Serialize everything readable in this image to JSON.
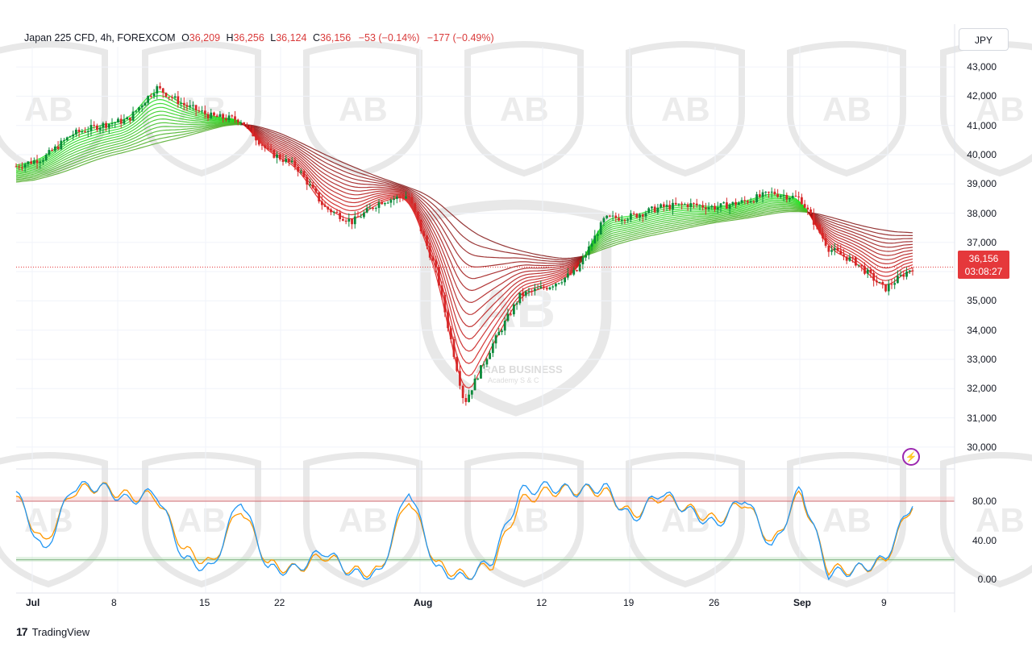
{
  "header": {
    "symbol": "Japan 225 CFD, 4h, FOREXCOM",
    "open_label": "O",
    "open": "36,209",
    "high_label": "H",
    "high": "36,256",
    "low_label": "L",
    "low": "36,124",
    "close_label": "C",
    "close": "36,156",
    "change": "−53 (−0.14%)",
    "change2": "−177 (−0.49%)"
  },
  "currency_button": "JPY",
  "price_tag": {
    "price": "36,156",
    "countdown": "03:08:27"
  },
  "brand": "TradingView",
  "watermark": {
    "title": "ARAB BUSINESS",
    "subtitle": "Academy S & C"
  },
  "colors": {
    "bull": "#26a69a",
    "bear": "#ef5350",
    "ribbon_up": "#00e600",
    "ribbon_down": "#d50000",
    "stoch_k": "#2196f3",
    "stoch_d": "#ff9800"
  },
  "chart_data": [
    {
      "type": "line",
      "title": "Japan 225 CFD, 4h, FOREXCOM",
      "ylim": [
        29500,
        43500
      ],
      "yticks": [
        "30,000",
        "31,000",
        "32,000",
        "33,000",
        "34,000",
        "35,000",
        "36,000",
        "37,000",
        "38,000",
        "39,000",
        "40,000",
        "41,000",
        "42,000",
        "43,000"
      ],
      "xticks": [
        "Jul",
        "8",
        "15",
        "22",
        "Aug",
        "12",
        "19",
        "26",
        "Sep",
        "9"
      ],
      "x": [
        "Jul 1",
        "Jul 3",
        "Jul 5",
        "Jul 8",
        "Jul 10",
        "Jul 11",
        "Jul 12",
        "Jul 15",
        "Jul 17",
        "Jul 19",
        "Jul 22",
        "Jul 24",
        "Jul 26",
        "Jul 29",
        "Jul 31",
        "Aug 2",
        "Aug 5",
        "Aug 6",
        "Aug 8",
        "Aug 12",
        "Aug 14",
        "Aug 16",
        "Aug 19",
        "Aug 21",
        "Aug 23",
        "Aug 26",
        "Aug 28",
        "Aug 30",
        "Sep 2",
        "Sep 4",
        "Sep 6",
        "Sep 9",
        "Sep 10"
      ],
      "series": [
        {
          "name": "close",
          "values": [
            39600,
            39900,
            40700,
            41000,
            41200,
            42300,
            41700,
            41300,
            41200,
            40100,
            39600,
            38200,
            37700,
            38400,
            38600,
            36000,
            31500,
            33500,
            35200,
            35500,
            36000,
            37800,
            37900,
            38200,
            38300,
            38200,
            38400,
            38700,
            38500,
            36800,
            36300,
            35400,
            36156
          ]
        },
        {
          "name": "ribbon_slow",
          "values": [
            39000,
            39200,
            39500,
            39900,
            40100,
            40400,
            40600,
            40900,
            41100,
            40900,
            40500,
            40000,
            39600,
            39200,
            38900,
            38500,
            37500,
            37000,
            36700,
            36500,
            36400,
            36800,
            37100,
            37300,
            37500,
            37700,
            37800,
            38000,
            38100,
            37900,
            37600,
            37400,
            37300
          ]
        }
      ]
    },
    {
      "type": "line",
      "title": "",
      "ylim": [
        0,
        100
      ],
      "yticks": [
        "0.00",
        "40.00",
        "80.00"
      ],
      "levels": [
        80,
        20
      ],
      "series": [
        {
          "name": "%K",
          "values": [
            90,
            25,
            95,
            95,
            80,
            90,
            20,
            10,
            85,
            10,
            10,
            30,
            5,
            5,
            95,
            10,
            0,
            20,
            90,
            95,
            90,
            95,
            60,
            90,
            70,
            55,
            85,
            30,
            95,
            5,
            10,
            20,
            80
          ]
        },
        {
          "name": "%D",
          "values": [
            85,
            35,
            90,
            95,
            85,
            85,
            30,
            15,
            75,
            15,
            10,
            25,
            8,
            8,
            85,
            15,
            3,
            15,
            80,
            90,
            92,
            90,
            65,
            85,
            72,
            60,
            80,
            35,
            90,
            10,
            10,
            18,
            78
          ]
        }
      ]
    }
  ]
}
